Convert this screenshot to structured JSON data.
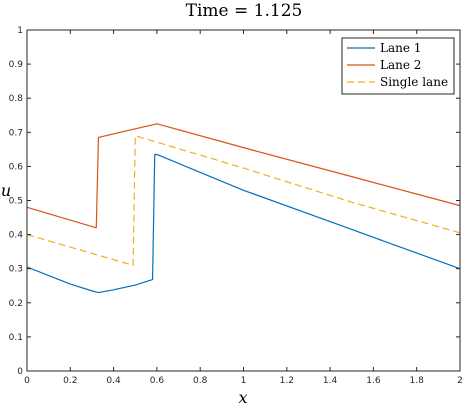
{
  "chart_data": {
    "type": "line",
    "title": "Time = 1.125",
    "xlabel": "x",
    "ylabel": "u",
    "xlim": [
      0,
      2
    ],
    "ylim": [
      0,
      1
    ],
    "x_ticks": [
      "0",
      "0.2",
      "0.4",
      "0.6",
      "0.8",
      "1",
      "1.2",
      "1.4",
      "1.6",
      "1.8",
      "2"
    ],
    "y_ticks": [
      "0",
      "0.1",
      "0.2",
      "0.3",
      "0.4",
      "0.5",
      "0.6",
      "0.7",
      "0.8",
      "0.9",
      "1"
    ],
    "grid": false,
    "legend_placement": "top-right",
    "series": [
      {
        "name": "Lane 1",
        "color": "#0072BD",
        "dash": "solid",
        "x": [
          0,
          0.1,
          0.2,
          0.3,
          0.33,
          0.4,
          0.5,
          0.58,
          0.59,
          0.6,
          1.0,
          1.5,
          2.0
        ],
        "y": [
          0.305,
          0.28,
          0.255,
          0.235,
          0.23,
          0.238,
          0.252,
          0.268,
          0.635,
          0.635,
          0.53,
          0.415,
          0.3
        ]
      },
      {
        "name": "Lane 2",
        "color": "#D95319",
        "dash": "solid",
        "x": [
          0,
          0.32,
          0.33,
          0.6,
          1.0,
          1.5,
          2.0
        ],
        "y": [
          0.48,
          0.42,
          0.685,
          0.725,
          0.655,
          0.57,
          0.485
        ]
      },
      {
        "name": "Single lane",
        "color": "#EDB120",
        "dash": "dashed",
        "x": [
          0,
          0.49,
          0.5,
          1.0,
          1.5,
          2.0
        ],
        "y": [
          0.4,
          0.31,
          0.69,
          0.595,
          0.495,
          0.405
        ]
      }
    ]
  }
}
